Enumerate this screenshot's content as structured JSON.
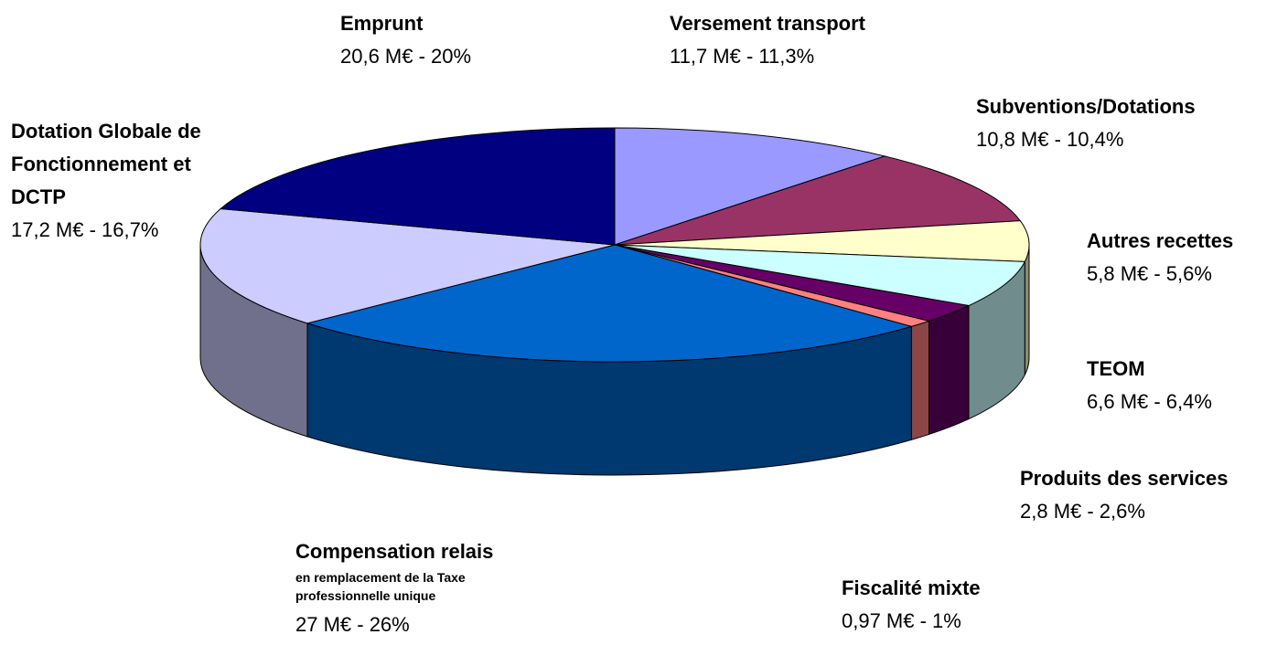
{
  "chart_data": {
    "type": "pie",
    "categories": [
      "Versement transport",
      "Subventions/Dotations",
      "Autres recettes",
      "TEOM",
      "Produits des services",
      "Fiscalité mixte",
      "Compensation relais",
      "Dotation Globale de Fonctionnement et DCTP",
      "Emprunt"
    ],
    "category_subtitles": [
      null,
      null,
      null,
      null,
      null,
      null,
      "en remplacement de la Taxe professionnelle unique",
      null,
      null
    ],
    "values": [
      11.3,
      10.4,
      5.6,
      6.4,
      2.6,
      1,
      26,
      16.7,
      20
    ],
    "value_labels": [
      "11,7 M€ - 11,3%",
      "10,8 M€ - 10,4%",
      "5,8 M€ - 5,6%",
      "6,6 M€ - 6,4%",
      "2,8 M€ - 2,6%",
      "0,97 M€ - 1%",
      "27 M€ - 26%",
      "17,2 M€ - 16,7%",
      "20,6 M€ - 20%"
    ],
    "colors": [
      "#9999ff",
      "#993366",
      "#ffffcc",
      "#ccffff",
      "#660066",
      "#ff8080",
      "#0066cc",
      "#ccccff",
      "#000080"
    ]
  }
}
